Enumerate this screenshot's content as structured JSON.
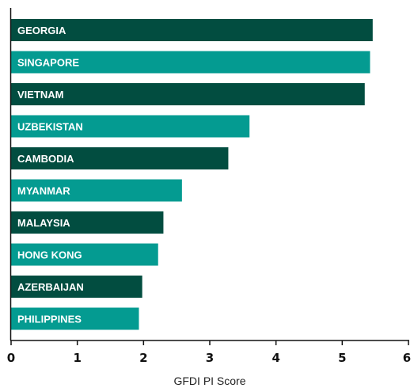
{
  "chart_data": {
    "type": "bar",
    "orientation": "horizontal",
    "categories": [
      "GEORGIA",
      "SINGAPORE",
      "VIETNAM",
      "UZBEKISTAN",
      "CAMBODIA",
      "MYANMAR",
      "MALAYSIA",
      "HONG KONG",
      "AZERBAIJAN",
      "PHILIPPINES"
    ],
    "values": [
      5.46,
      5.42,
      5.34,
      3.6,
      3.28,
      2.58,
      2.3,
      2.22,
      1.98,
      1.93
    ],
    "xlabel": "GFDI PI Score",
    "ylabel": "",
    "xlim": [
      0,
      6
    ],
    "xticks": [
      "0",
      "1",
      "2",
      "3",
      "4",
      "5",
      "6"
    ],
    "grid": false,
    "colors": {
      "dark": "#024d40",
      "light": "#049b91",
      "axis": "#111111"
    }
  }
}
